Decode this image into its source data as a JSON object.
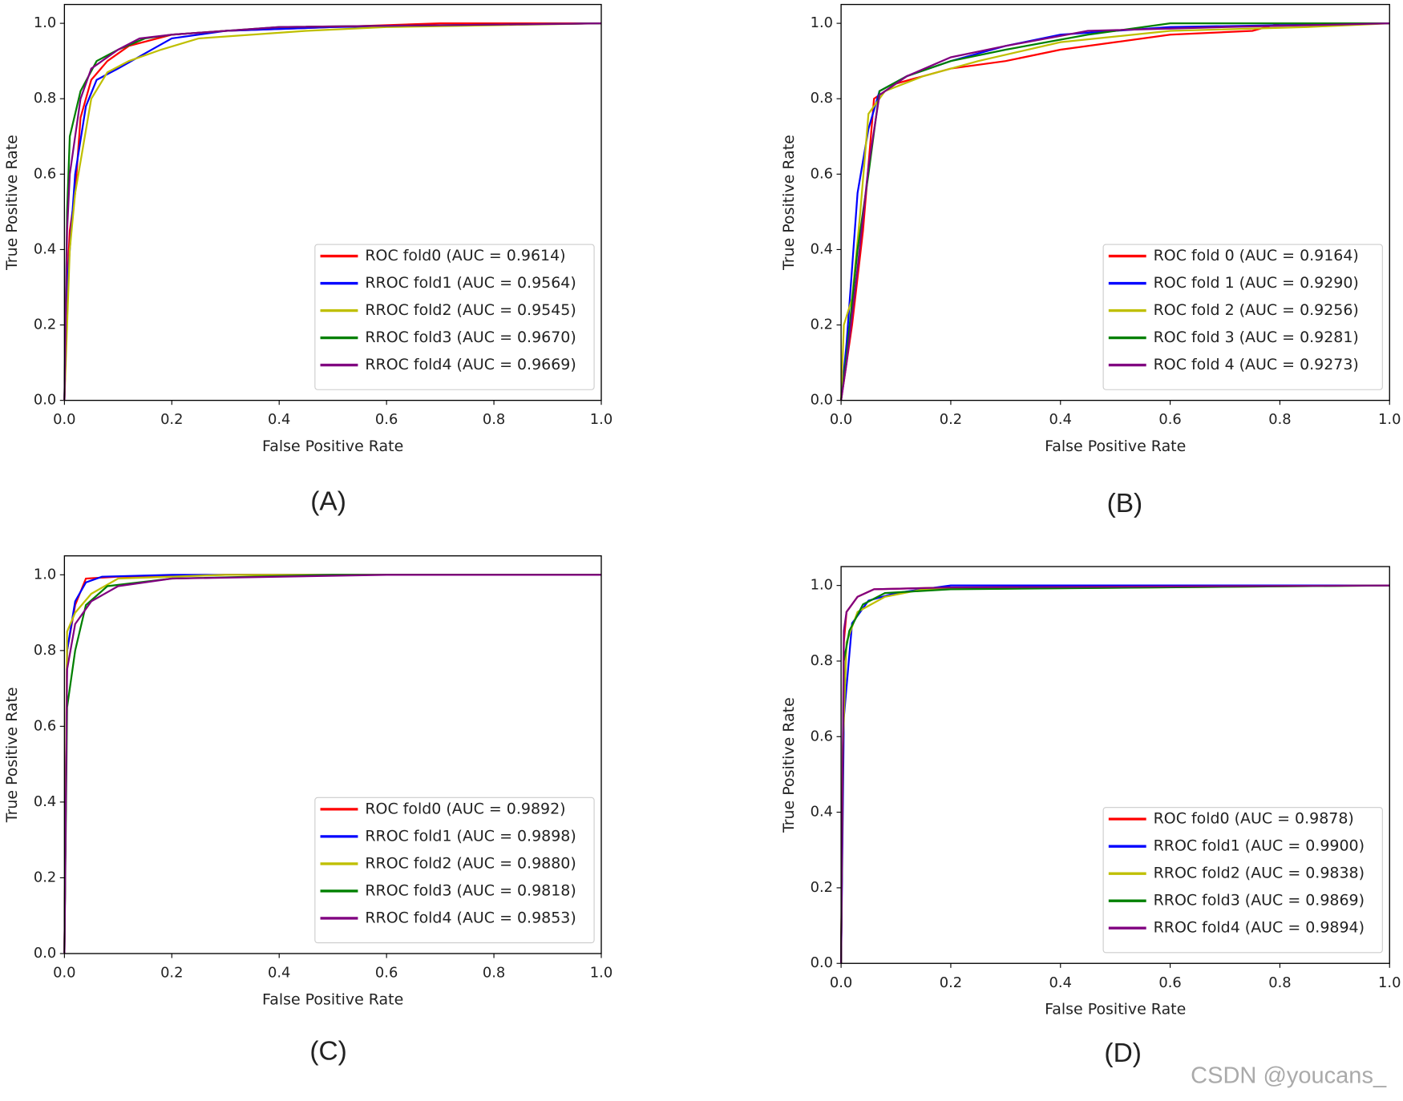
{
  "watermark": "CSDN @youcans_",
  "chart_data": [
    {
      "type": "line",
      "caption": "(A)",
      "xlabel": "False Positive Rate",
      "ylabel": "True Positive Rate",
      "legend": "lower right",
      "xlim": [
        0,
        1
      ],
      "ylim": [
        0,
        1.05
      ],
      "xticks": [
        {
          "value": 0,
          "label": "0.0"
        },
        0.2,
        0.4,
        0.6,
        0.8,
        {
          "value": 1,
          "label": "1.0"
        }
      ],
      "yticks": [
        {
          "value": 0,
          "label": "0.0"
        },
        0.2,
        0.4,
        0.6,
        0.8,
        {
          "value": 1,
          "label": "1.0"
        }
      ],
      "series": [
        {
          "name": "ROC fold0 (AUC = 0.9614)",
          "color": "#ff0000",
          "x": [
            0,
            0.005,
            0.01,
            0.02,
            0.03,
            0.05,
            0.08,
            0.12,
            0.2,
            0.3,
            0.5,
            0.7,
            1
          ],
          "values": [
            0,
            0.3,
            0.45,
            0.55,
            0.75,
            0.85,
            0.9,
            0.94,
            0.97,
            0.98,
            0.99,
            1,
            1
          ]
        },
        {
          "name": "RROC fold1 (AUC = 0.9564)",
          "color": "#0000ff",
          "x": [
            0,
            0.005,
            0.02,
            0.04,
            0.06,
            0.1,
            0.15,
            0.2,
            0.3,
            0.5,
            1
          ],
          "values": [
            0,
            0.3,
            0.6,
            0.78,
            0.85,
            0.88,
            0.92,
            0.96,
            0.98,
            0.99,
            1
          ]
        },
        {
          "name": "RROC fold2 (AUC = 0.9545)",
          "color": "#bfbf00",
          "x": [
            0,
            0.01,
            0.02,
            0.05,
            0.08,
            0.12,
            0.18,
            0.25,
            0.45,
            0.6,
            1
          ],
          "values": [
            0,
            0.4,
            0.55,
            0.8,
            0.87,
            0.9,
            0.93,
            0.96,
            0.98,
            0.99,
            1
          ]
        },
        {
          "name": "RROC fold3 (AUC = 0.9670)",
          "color": "#008000",
          "x": [
            0,
            0.005,
            0.01,
            0.03,
            0.06,
            0.1,
            0.15,
            0.2,
            0.4,
            1
          ],
          "values": [
            0,
            0.5,
            0.7,
            0.82,
            0.9,
            0.93,
            0.96,
            0.97,
            0.99,
            1
          ]
        },
        {
          "name": "RROC fold4 (AUC = 0.9669)",
          "color": "#800080",
          "x": [
            0,
            0.005,
            0.01,
            0.03,
            0.05,
            0.1,
            0.14,
            0.2,
            0.4,
            1
          ],
          "values": [
            0,
            0.45,
            0.6,
            0.8,
            0.88,
            0.93,
            0.96,
            0.97,
            0.99,
            1
          ]
        }
      ]
    },
    {
      "type": "line",
      "caption": "(B)",
      "xlabel": "False Positive Rate",
      "ylabel": "True Positive Rate",
      "legend": "lower right",
      "xlim": [
        0,
        1
      ],
      "ylim": [
        0,
        1.05
      ],
      "xticks": [
        {
          "value": 0,
          "label": "0.0"
        },
        0.2,
        0.4,
        0.6,
        0.8,
        {
          "value": 1,
          "label": "1.0"
        }
      ],
      "yticks": [
        {
          "value": 0,
          "label": "0.0"
        },
        0.2,
        0.4,
        0.6,
        0.8,
        {
          "value": 1,
          "label": "1.0"
        }
      ],
      "series": [
        {
          "name": "ROC fold 0 (AUC = 0.9164)",
          "color": "#ff0000",
          "x": [
            0,
            0.005,
            0.02,
            0.04,
            0.06,
            0.1,
            0.2,
            0.3,
            0.4,
            0.5,
            0.6,
            0.75,
            0.8,
            1
          ],
          "values": [
            0,
            0.05,
            0.2,
            0.45,
            0.8,
            0.84,
            0.88,
            0.9,
            0.93,
            0.95,
            0.97,
            0.98,
            1,
            1
          ]
        },
        {
          "name": "ROC fold 1 (AUC = 0.9290)",
          "color": "#0000ff",
          "x": [
            0,
            0.01,
            0.03,
            0.05,
            0.07,
            0.12,
            0.2,
            0.3,
            0.4,
            0.6,
            1
          ],
          "values": [
            0,
            0.15,
            0.55,
            0.72,
            0.82,
            0.86,
            0.9,
            0.94,
            0.97,
            0.99,
            1
          ]
        },
        {
          "name": "ROC fold 2 (AUC = 0.9256)",
          "color": "#bfbf00",
          "x": [
            0,
            0.005,
            0.02,
            0.035,
            0.05,
            0.08,
            0.15,
            0.25,
            0.4,
            0.6,
            0.85,
            1
          ],
          "values": [
            0,
            0.2,
            0.27,
            0.5,
            0.76,
            0.82,
            0.86,
            0.9,
            0.95,
            0.98,
            0.99,
            1
          ]
        },
        {
          "name": "ROC fold 3 (AUC = 0.9281)",
          "color": "#008000",
          "x": [
            0,
            0.01,
            0.03,
            0.05,
            0.07,
            0.12,
            0.2,
            0.3,
            0.45,
            0.6,
            1
          ],
          "values": [
            0,
            0.12,
            0.4,
            0.6,
            0.82,
            0.86,
            0.9,
            0.93,
            0.97,
            1,
            1
          ]
        },
        {
          "name": "ROC fold 4 (AUC = 0.9273)",
          "color": "#800080",
          "x": [
            0,
            0.01,
            0.03,
            0.05,
            0.07,
            0.12,
            0.2,
            0.3,
            0.45,
            0.7,
            1
          ],
          "values": [
            0,
            0.1,
            0.35,
            0.62,
            0.81,
            0.86,
            0.91,
            0.94,
            0.98,
            0.99,
            1
          ]
        }
      ]
    },
    {
      "type": "line",
      "caption": "(C)",
      "xlabel": "False Positive Rate",
      "ylabel": "True Positive Rate",
      "legend": "lower right",
      "xlim": [
        0,
        1
      ],
      "ylim": [
        0,
        1.05
      ],
      "xticks": [
        {
          "value": 0,
          "label": "0.0"
        },
        0.2,
        0.4,
        0.6,
        0.8,
        {
          "value": 1,
          "label": "1.0"
        }
      ],
      "yticks": [
        {
          "value": 0,
          "label": "0.0"
        },
        0.2,
        0.4,
        0.6,
        0.8,
        {
          "value": 1,
          "label": "1.0"
        }
      ],
      "series": [
        {
          "name": "ROC fold0 (AUC = 0.9892)",
          "color": "#ff0000",
          "x": [
            0,
            0.005,
            0.02,
            0.04,
            0.1,
            0.3,
            1
          ],
          "values": [
            0,
            0.8,
            0.92,
            0.99,
            0.995,
            1,
            1
          ]
        },
        {
          "name": "RROC fold1 (AUC = 0.9898)",
          "color": "#0000ff",
          "x": [
            0,
            0.005,
            0.02,
            0.04,
            0.07,
            0.2,
            1
          ],
          "values": [
            0,
            0.8,
            0.93,
            0.98,
            0.995,
            1,
            1
          ]
        },
        {
          "name": "RROC fold2 (AUC = 0.9880)",
          "color": "#bfbf00",
          "x": [
            0,
            0.005,
            0.02,
            0.05,
            0.1,
            0.3,
            1
          ],
          "values": [
            0,
            0.85,
            0.9,
            0.95,
            0.99,
            1,
            1
          ]
        },
        {
          "name": "RROC fold3 (AUC = 0.9818)",
          "color": "#008000",
          "x": [
            0,
            0.005,
            0.02,
            0.04,
            0.08,
            0.2,
            0.5,
            1
          ],
          "values": [
            0,
            0.65,
            0.8,
            0.92,
            0.97,
            0.99,
            1,
            1
          ]
        },
        {
          "name": "RROC fold4 (AUC = 0.9853)",
          "color": "#800080",
          "x": [
            0,
            0.005,
            0.02,
            0.05,
            0.1,
            0.2,
            0.6,
            1
          ],
          "values": [
            0,
            0.75,
            0.87,
            0.93,
            0.97,
            0.99,
            1,
            1
          ]
        }
      ]
    },
    {
      "type": "line",
      "caption": "(D)",
      "xlabel": "False Positive Rate",
      "ylabel": "True Positive Rate",
      "legend": "lower right",
      "xlim": [
        0,
        1
      ],
      "ylim": [
        0,
        1.05
      ],
      "xticks": [
        {
          "value": 0,
          "label": "0.0"
        },
        0.2,
        0.4,
        0.6,
        0.8,
        {
          "value": 1,
          "label": "1.0"
        }
      ],
      "yticks": [
        {
          "value": 0,
          "label": "0.0"
        },
        0.2,
        0.4,
        0.6,
        0.8,
        {
          "value": 1,
          "label": "1.0"
        }
      ],
      "series": [
        {
          "name": "ROC fold0 (AUC = 0.9878)",
          "color": "#ff0000",
          "x": [
            0,
            0.005,
            0.01,
            0.03,
            0.06,
            0.2,
            1
          ],
          "values": [
            0,
            0.85,
            0.93,
            0.97,
            0.99,
            0.995,
            1
          ]
        },
        {
          "name": "RROC fold1 (AUC = 0.9900)",
          "color": "#0000ff",
          "x": [
            0,
            0.005,
            0.02,
            0.05,
            0.1,
            0.2,
            1
          ],
          "values": [
            0,
            0.65,
            0.9,
            0.96,
            0.98,
            1,
            1
          ]
        },
        {
          "name": "RROC fold2 (AUC = 0.9838)",
          "color": "#bfbf00",
          "x": [
            0,
            0.003,
            0.01,
            0.03,
            0.08,
            0.15,
            1
          ],
          "values": [
            0,
            0.56,
            0.85,
            0.93,
            0.97,
            0.99,
            1
          ]
        },
        {
          "name": "RROC fold3 (AUC = 0.9869)",
          "color": "#008000",
          "x": [
            0,
            0.005,
            0.015,
            0.04,
            0.08,
            0.2,
            1
          ],
          "values": [
            0,
            0.8,
            0.88,
            0.95,
            0.98,
            0.99,
            1
          ]
        },
        {
          "name": "RROC fold4 (AUC = 0.9894)",
          "color": "#800080",
          "x": [
            0,
            0.005,
            0.01,
            0.03,
            0.06,
            0.2,
            1
          ],
          "values": [
            0,
            0.88,
            0.93,
            0.97,
            0.99,
            0.995,
            1
          ]
        }
      ]
    }
  ]
}
